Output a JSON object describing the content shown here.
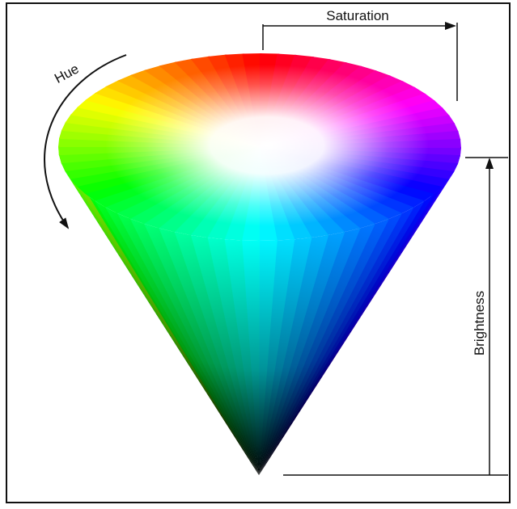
{
  "labels": {
    "hue": "Hue",
    "saturation": "Saturation",
    "brightness": "Brightness"
  }
}
